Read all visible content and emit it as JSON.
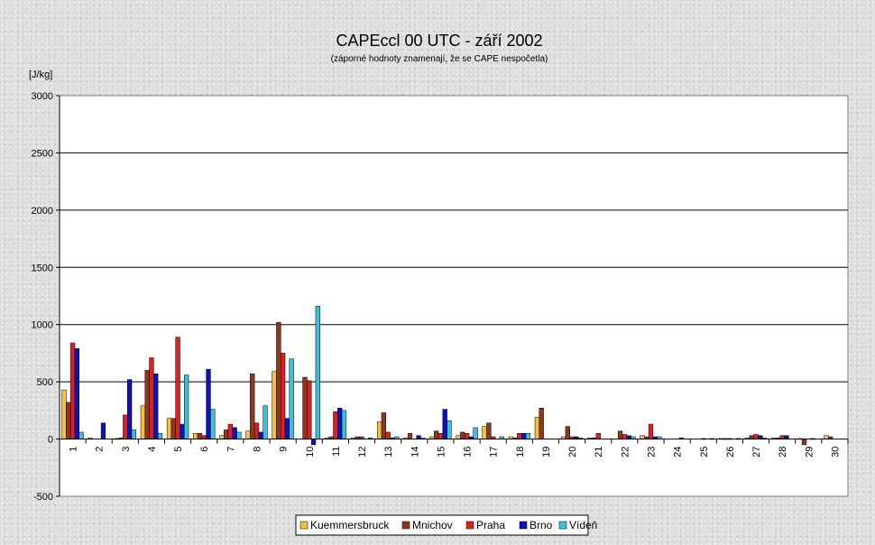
{
  "chart_data": {
    "type": "bar",
    "title": "CAPEccl 00 UTC - září 2002",
    "subtitle": "(záporné hodnoty znamenají, že se CAPE nespočetla)",
    "ylabel": "[J/kg]",
    "xlabel": "",
    "ylim": [
      -500,
      3000
    ],
    "yticks": [
      -500,
      0,
      500,
      1000,
      1500,
      2000,
      2500,
      3000
    ],
    "grid": true,
    "legend_position": "bottom",
    "categories": [
      "1",
      "2",
      "3",
      "4",
      "5",
      "6",
      "7",
      "8",
      "9",
      "10",
      "11",
      "12",
      "13",
      "14",
      "15",
      "16",
      "17",
      "18",
      "19",
      "20",
      "21",
      "22",
      "23",
      "24",
      "25",
      "26",
      "27",
      "28",
      "29",
      "30"
    ],
    "series": [
      {
        "name": "Kuemmersbruck",
        "color": "#f2c23e",
        "values": [
          430,
          10,
          5,
          290,
          180,
          50,
          30,
          70,
          590,
          0,
          10,
          10,
          150,
          10,
          20,
          30,
          110,
          20,
          190,
          20,
          10,
          0,
          30,
          0,
          0,
          5,
          10,
          10,
          5,
          30
        ]
      },
      {
        "name": "Mnichov",
        "color": "#8b3a20",
        "values": [
          320,
          0,
          10,
          600,
          180,
          50,
          80,
          570,
          1020,
          540,
          20,
          20,
          230,
          50,
          70,
          60,
          140,
          10,
          270,
          110,
          10,
          70,
          20,
          0,
          0,
          5,
          30,
          10,
          -50,
          20
        ]
      },
      {
        "name": "Praha",
        "color": "#e02020",
        "values": [
          840,
          0,
          210,
          710,
          890,
          30,
          130,
          140,
          750,
          510,
          240,
          20,
          60,
          0,
          50,
          50,
          20,
          50,
          0,
          20,
          50,
          40,
          130,
          0,
          5,
          5,
          40,
          30,
          0,
          0
        ]
      },
      {
        "name": "Brno",
        "color": "#1010b8",
        "values": [
          790,
          140,
          520,
          570,
          130,
          610,
          100,
          60,
          180,
          -50,
          270,
          0,
          10,
          30,
          260,
          20,
          0,
          50,
          0,
          20,
          0,
          30,
          20,
          10,
          0,
          0,
          30,
          30,
          5,
          0
        ]
      },
      {
        "name": "Vídeň",
        "color": "#3ec0d8",
        "values": [
          60,
          0,
          80,
          50,
          560,
          260,
          60,
          290,
          700,
          1160,
          250,
          10,
          20,
          10,
          160,
          100,
          20,
          50,
          0,
          10,
          0,
          20,
          20,
          0,
          5,
          5,
          10,
          0,
          0,
          0
        ]
      }
    ]
  }
}
